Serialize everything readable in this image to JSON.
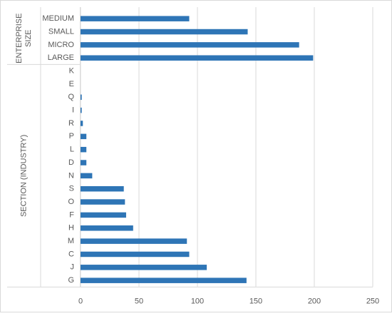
{
  "chart_data": {
    "type": "bar",
    "orientation": "horizontal",
    "bar_color": "#2E75B6",
    "grid": true,
    "xlim": [
      0,
      250
    ],
    "x_ticks": [
      "0",
      "50",
      "100",
      "150",
      "200",
      "250"
    ],
    "groups": [
      {
        "label_lines": [
          "ENTERPRISE",
          "SIZE"
        ],
        "categories": [
          "MEDIUM",
          "SMALL",
          "MICRO",
          "LARGE"
        ],
        "values": [
          93,
          143,
          187,
          199
        ]
      },
      {
        "label_lines": [
          "SECTION (INDUSTRY)"
        ],
        "categories": [
          "K",
          "E",
          "Q",
          "I",
          "R",
          "P",
          "L",
          "D",
          "N",
          "S",
          "O",
          "F",
          "H",
          "M",
          "C",
          "J",
          "G"
        ],
        "values": [
          0,
          0,
          1,
          1,
          2,
          5,
          5,
          5,
          10,
          37,
          38,
          39,
          45,
          91,
          93,
          108,
          142
        ]
      }
    ]
  }
}
